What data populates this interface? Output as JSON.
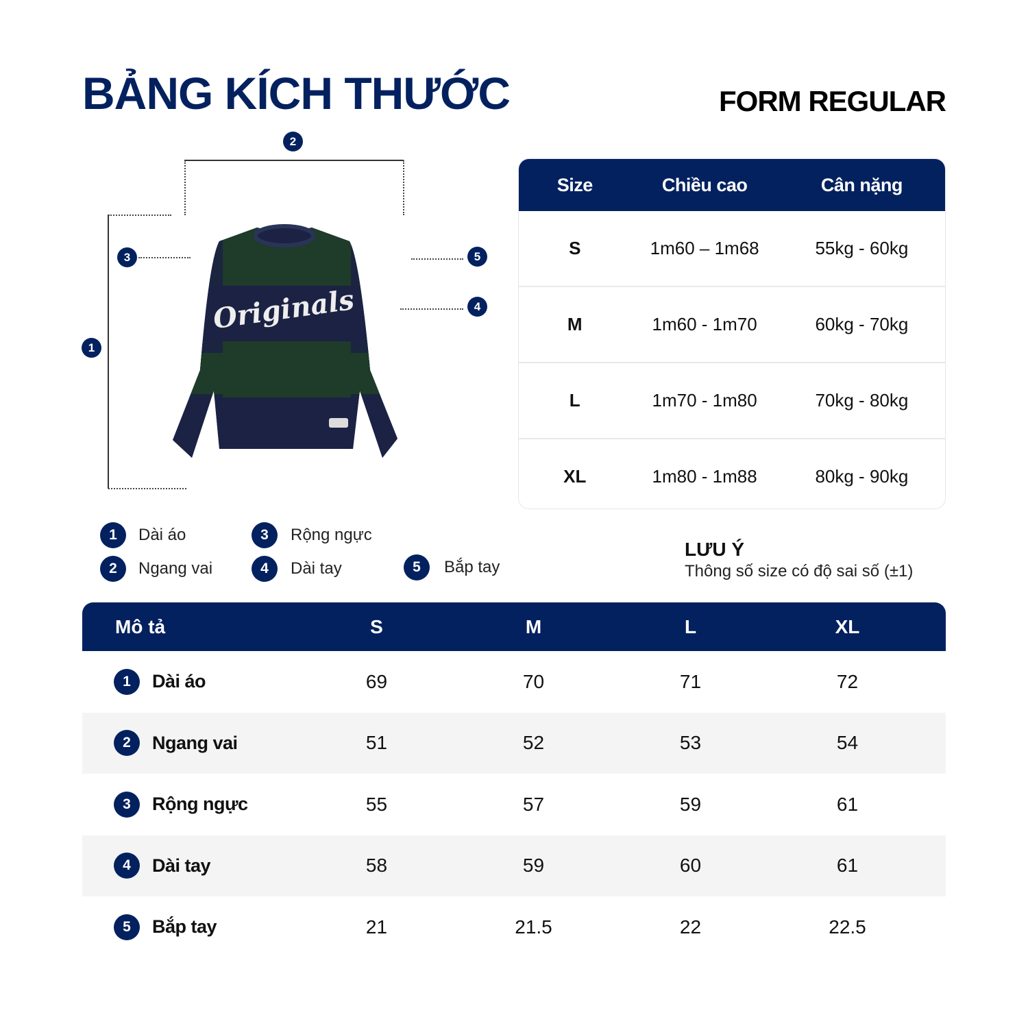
{
  "header": {
    "title": "BẢNG KÍCH THƯỚC",
    "form": "FORM REGULAR"
  },
  "colors": {
    "navy": "#03215f",
    "green": "#1f3b2a",
    "alt_row": "#f4f4f4"
  },
  "diagram": {
    "graphic_text": "Originals",
    "markers": [
      "1",
      "2",
      "3",
      "4",
      "5"
    ]
  },
  "fit_table": {
    "headers": [
      "Size",
      "Chiều cao",
      "Cân nặng"
    ],
    "rows": [
      [
        "S",
        "1m60 – 1m68",
        "55kg - 60kg"
      ],
      [
        "M",
        "1m60 - 1m70",
        "60kg - 70kg"
      ],
      [
        "L",
        "1m70 - 1m80",
        "70kg - 80kg"
      ],
      [
        "XL",
        "1m80 - 1m88",
        "80kg - 90kg"
      ]
    ]
  },
  "legend": [
    {
      "num": "1",
      "label": "Dài áo"
    },
    {
      "num": "2",
      "label": "Ngang vai"
    },
    {
      "num": "3",
      "label": "Rộng ngực"
    },
    {
      "num": "4",
      "label": "Dài tay"
    },
    {
      "num": "5",
      "label": "Bắp tay"
    }
  ],
  "note": {
    "title": "LƯU Ý",
    "text": "Thông số size có độ sai số (±1)"
  },
  "measure_table": {
    "headers": [
      "Mô tả",
      "S",
      "M",
      "L",
      "XL"
    ],
    "rows": [
      {
        "num": "1",
        "label": "Dài áo",
        "values": [
          "69",
          "70",
          "71",
          "72"
        ]
      },
      {
        "num": "2",
        "label": "Ngang vai",
        "values": [
          "51",
          "52",
          "53",
          "54"
        ]
      },
      {
        "num": "3",
        "label": "Rộng ngực",
        "values": [
          "55",
          "57",
          "59",
          "61"
        ]
      },
      {
        "num": "4",
        "label": "Dài tay",
        "values": [
          "58",
          "59",
          "60",
          "61"
        ]
      },
      {
        "num": "5",
        "label": "Bắp tay",
        "values": [
          "21",
          "21.5",
          "22",
          "22.5"
        ]
      }
    ]
  }
}
